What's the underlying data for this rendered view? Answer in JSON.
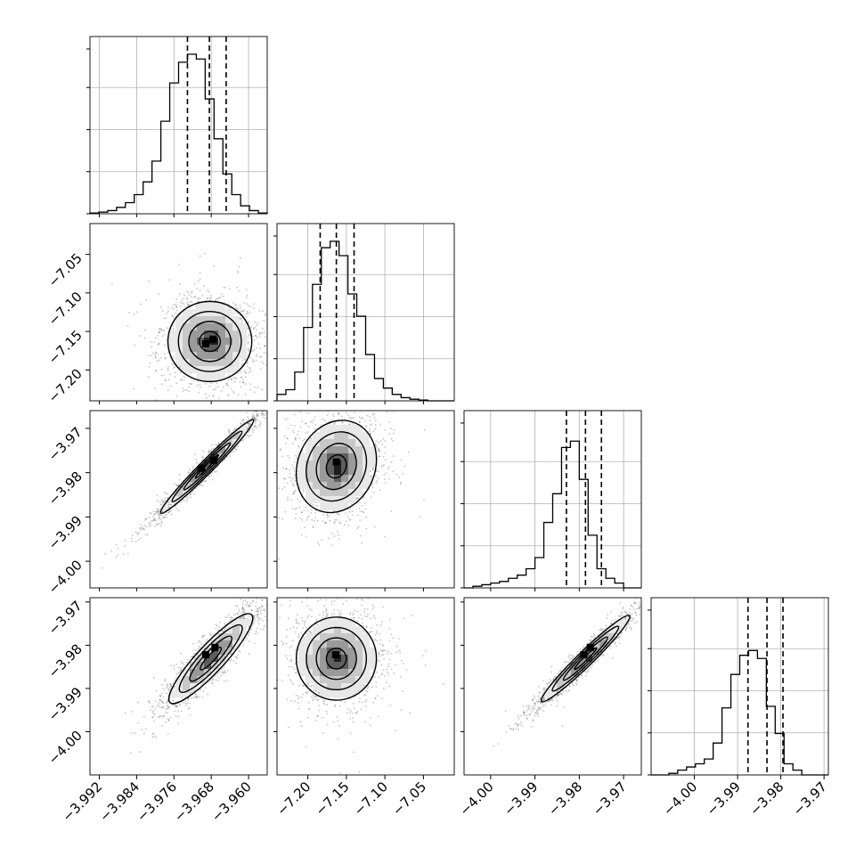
{
  "chart_data": {
    "type": "corner",
    "grid": true,
    "colors": {
      "line": "#000000",
      "grid": "#b0b0b0",
      "frame": "#000000"
    },
    "parameters": [
      {
        "range": [
          -3.994,
          -3.956
        ],
        "ticks": [
          "−3.992",
          "−3.984",
          "−3.976",
          "−3.968",
          "−3.960"
        ],
        "tick_values": [
          -3.992,
          -3.984,
          -3.976,
          -3.968,
          -3.96
        ],
        "quantiles": [
          -3.9731,
          -3.9684,
          -3.9648
        ],
        "hist": [
          0.005,
          0.01,
          0.02,
          0.04,
          0.07,
          0.12,
          0.2,
          0.33,
          0.58,
          0.82,
          0.95,
          1.0,
          0.97,
          0.72,
          0.47,
          0.25,
          0.12,
          0.05,
          0.02,
          0.005
        ]
      },
      {
        "range": [
          -7.24,
          -7.01
        ],
        "ticks": [
          "−7.20",
          "−7.15",
          "−7.10",
          "−7.05"
        ],
        "tick_values": [
          -7.2,
          -7.15,
          -7.1,
          -7.05
        ],
        "quantiles": [
          -7.184,
          -7.163,
          -7.14
        ],
        "hist": [
          0.04,
          0.07,
          0.18,
          0.46,
          0.73,
          0.96,
          1.0,
          0.91,
          0.67,
          0.53,
          0.29,
          0.14,
          0.08,
          0.04,
          0.02,
          0.01,
          0.005,
          0.0,
          0.0,
          0.0
        ]
      },
      {
        "range": [
          -4.006,
          -3.966
        ],
        "ticks": [
          "−4.00",
          "−3.99",
          "−3.98",
          "−3.97"
        ],
        "tick_values": [
          -4.0,
          -3.99,
          -3.98,
          -3.97
        ],
        "quantiles": [
          -3.9829,
          -3.9786,
          -3.975
        ],
        "hist": [
          0.0,
          0.01,
          0.02,
          0.03,
          0.04,
          0.06,
          0.08,
          0.12,
          0.19,
          0.41,
          0.59,
          0.88,
          0.92,
          0.68,
          0.33,
          0.12,
          0.06,
          0.03,
          0.0,
          0.0
        ]
      },
      {
        "range": [
          -4.01,
          -3.969
        ],
        "ticks": [
          "−4.00",
          "−3.99",
          "−3.98",
          "−3.97"
        ],
        "tick_values": [
          -4.0,
          -3.99,
          -3.98,
          -3.97
        ],
        "quantiles": [
          -3.9876,
          -3.9832,
          -3.9795
        ],
        "hist": [
          0.0,
          0.0,
          0.01,
          0.03,
          0.05,
          0.07,
          0.1,
          0.2,
          0.42,
          0.63,
          0.75,
          0.78,
          0.73,
          0.43,
          0.26,
          0.07,
          0.03,
          0.0,
          0.0,
          0.0
        ]
      }
    ],
    "panels_2d": [
      {
        "row": 1,
        "col": 0,
        "center": [
          -3.9683,
          -7.163
        ],
        "spread": [
          0.0045,
          0.026
        ],
        "corr": 0.0,
        "peaks": [
          [
            -3.9692,
            -7.166
          ],
          [
            -3.9676,
            -7.16
          ]
        ]
      },
      {
        "row": 2,
        "col": 0,
        "center": [
          -3.9689,
          -3.9786
        ],
        "spread": [
          0.005,
          0.0053
        ],
        "corr": 0.98,
        "peaks": [
          [
            -3.97,
            -3.979
          ],
          [
            -3.9675,
            -3.9772
          ]
        ]
      },
      {
        "row": 2,
        "col": 1,
        "center": [
          -7.163,
          -3.9786
        ],
        "spread": [
          0.026,
          0.0052
        ],
        "corr": 0.15,
        "peaks": [
          [
            -7.163,
            -3.9776
          ]
        ]
      },
      {
        "row": 3,
        "col": 0,
        "center": [
          -3.9681,
          -3.9831
        ],
        "spread": [
          0.0045,
          0.0052
        ],
        "corr": 0.9,
        "peaks": [
          [
            -3.9692,
            -3.9822
          ],
          [
            -3.9672,
            -3.9805
          ]
        ]
      },
      {
        "row": 3,
        "col": 1,
        "center": [
          -7.163,
          -3.9831
        ],
        "spread": [
          0.026,
          0.0048
        ],
        "corr": 0.0,
        "peaks": [
          [
            -7.164,
            -3.9822
          ]
        ]
      },
      {
        "row": 3,
        "col": 2,
        "center": [
          -3.9786,
          -3.9831
        ],
        "spread": [
          0.005,
          0.005
        ],
        "corr": 0.97,
        "peaks": [
          [
            -3.979,
            -3.9822
          ],
          [
            -3.9775,
            -3.9805
          ]
        ]
      }
    ]
  }
}
